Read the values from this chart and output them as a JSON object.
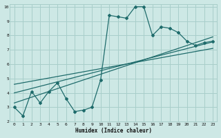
{
  "title": "",
  "xlabel": "Humidex (Indice chaleur)",
  "background_color": "#cde8e5",
  "grid_color": "#a8ceca",
  "line_color": "#1e6b6b",
  "xlim": [
    -0.5,
    23.5
  ],
  "ylim": [
    2,
    10.2
  ],
  "x_ticks": [
    0,
    1,
    2,
    3,
    4,
    5,
    6,
    7,
    8,
    9,
    10,
    11,
    12,
    13,
    14,
    15,
    16,
    17,
    18,
    19,
    20,
    21,
    22,
    23
  ],
  "y_ticks": [
    2,
    3,
    4,
    5,
    6,
    7,
    8,
    9,
    10
  ],
  "curve1_x": [
    0,
    1,
    2,
    3,
    4,
    5,
    6,
    7,
    8,
    9,
    10,
    11,
    12,
    13,
    14,
    15,
    16,
    17,
    18,
    19,
    20,
    21,
    22,
    23
  ],
  "curve1_y": [
    3.0,
    2.4,
    4.1,
    3.3,
    4.1,
    4.7,
    3.6,
    2.7,
    2.8,
    3.0,
    4.9,
    9.4,
    9.3,
    9.2,
    10.0,
    10.0,
    8.0,
    8.6,
    8.5,
    8.2,
    7.6,
    7.3,
    7.5,
    7.6
  ],
  "line1_x": [
    0,
    23
  ],
  "line1_y": [
    3.3,
    7.9
  ],
  "line2_x": [
    0,
    23
  ],
  "line2_y": [
    4.0,
    7.55
  ],
  "line3_x": [
    0,
    23
  ],
  "line3_y": [
    4.6,
    7.1
  ]
}
